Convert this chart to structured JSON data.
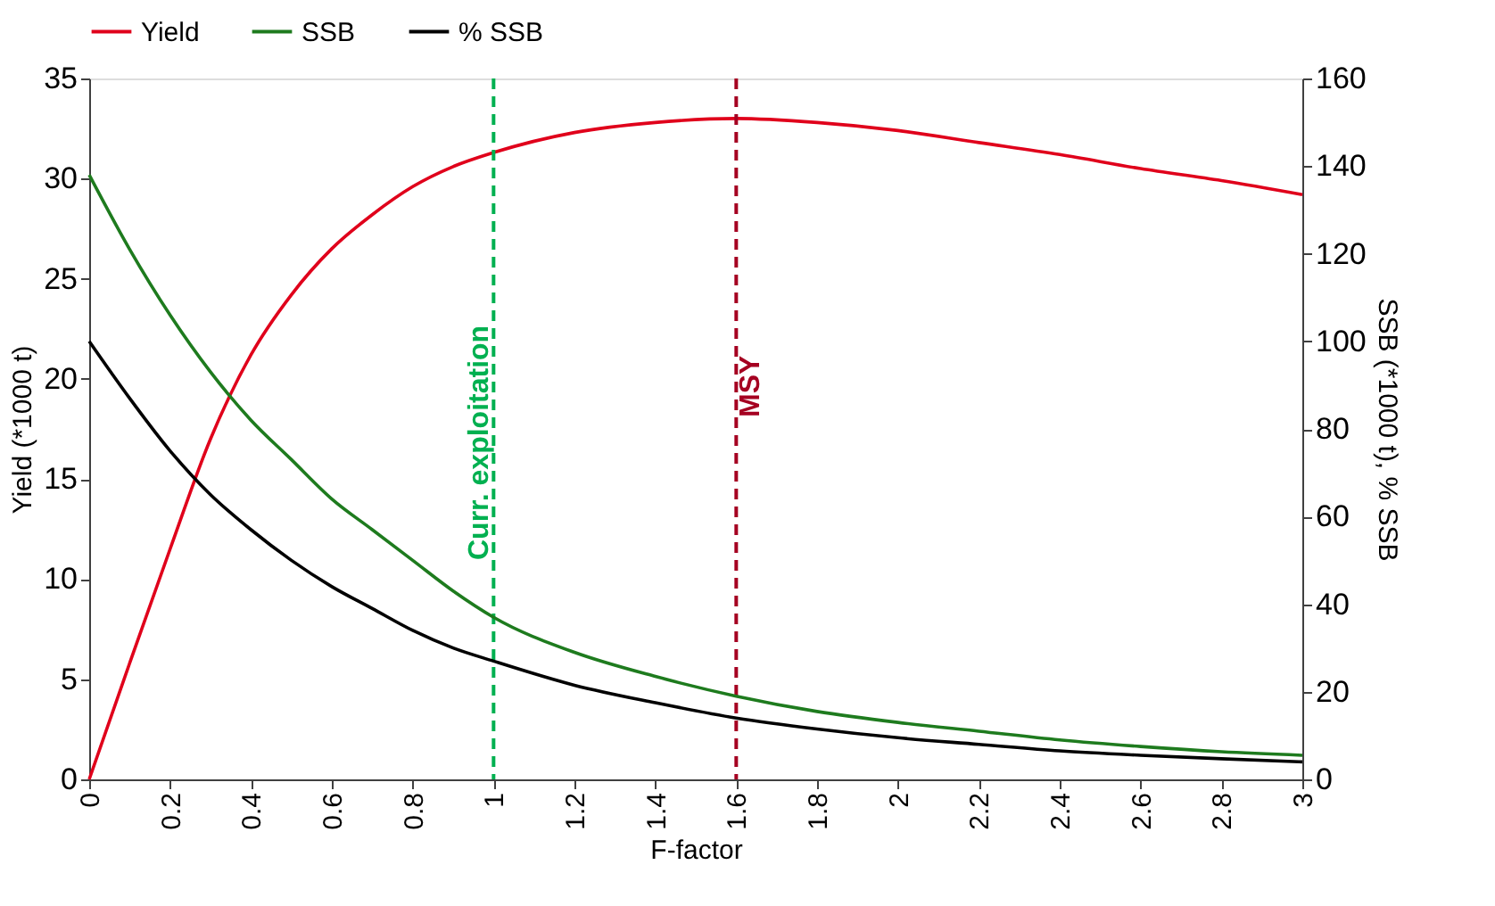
{
  "chart_data": {
    "type": "line",
    "xlabel": "F-factor",
    "ylabel": "Yield (*1000 t)",
    "y2label": "SSB (*1000 t), % SSB",
    "x": [
      0,
      0.1,
      0.2,
      0.3,
      0.4,
      0.5,
      0.6,
      0.7,
      0.8,
      0.9,
      1.0,
      1.2,
      1.4,
      1.6,
      1.8,
      2.0,
      2.2,
      2.4,
      2.6,
      2.8,
      3.0
    ],
    "series": [
      {
        "name": "Yield",
        "color": "#e0001b",
        "values": [
          0,
          5.8,
          11.5,
          17,
          21.2,
          24.2,
          26.5,
          28.2,
          29.6,
          30.6,
          31.3,
          32.3,
          32.8,
          33.0,
          32.8,
          32.4,
          31.8,
          31.2,
          30.5,
          29.9,
          29.2
        ]
      },
      {
        "name": "SSB",
        "color": "#1e7b1e",
        "axis": "y2",
        "values": [
          138,
          121,
          106,
          93,
          82,
          73,
          64,
          57,
          50,
          43,
          37,
          29,
          23.5,
          19,
          15.5,
          13,
          11,
          9,
          7.5,
          6.3,
          5.5
        ]
      },
      {
        "name": "% SSB",
        "color": "#000000",
        "axis": "y2",
        "values": [
          100,
          87,
          75,
          65,
          57,
          50,
          44,
          39,
          34,
          30,
          27,
          21.5,
          17.5,
          14,
          11.5,
          9.5,
          8,
          6.5,
          5.5,
          4.7,
          4
        ]
      }
    ],
    "xlim": [
      0,
      3
    ],
    "xticks": [
      0,
      0.2,
      0.4,
      0.6,
      0.8,
      1,
      1.2,
      1.4,
      1.6,
      1.8,
      2,
      2.2,
      2.4,
      2.6,
      2.8,
      3
    ],
    "ylim": [
      0,
      35
    ],
    "yticks": [
      0,
      5,
      10,
      15,
      20,
      25,
      30,
      35
    ],
    "y2lim": [
      0,
      160
    ],
    "y2ticks": [
      0,
      20,
      40,
      60,
      80,
      100,
      120,
      140,
      160
    ],
    "ref_lines": [
      {
        "axis": "x",
        "value": 1,
        "label": "Curr. exploitation",
        "color": "#00b050",
        "line_style": "dashed"
      },
      {
        "axis": "x",
        "value": 1.6,
        "label": "MSY",
        "color": "#a50021",
        "line_style": "dashed"
      }
    ],
    "legend": "top",
    "grid": false,
    "marker": "none",
    "line_style": "solid"
  }
}
